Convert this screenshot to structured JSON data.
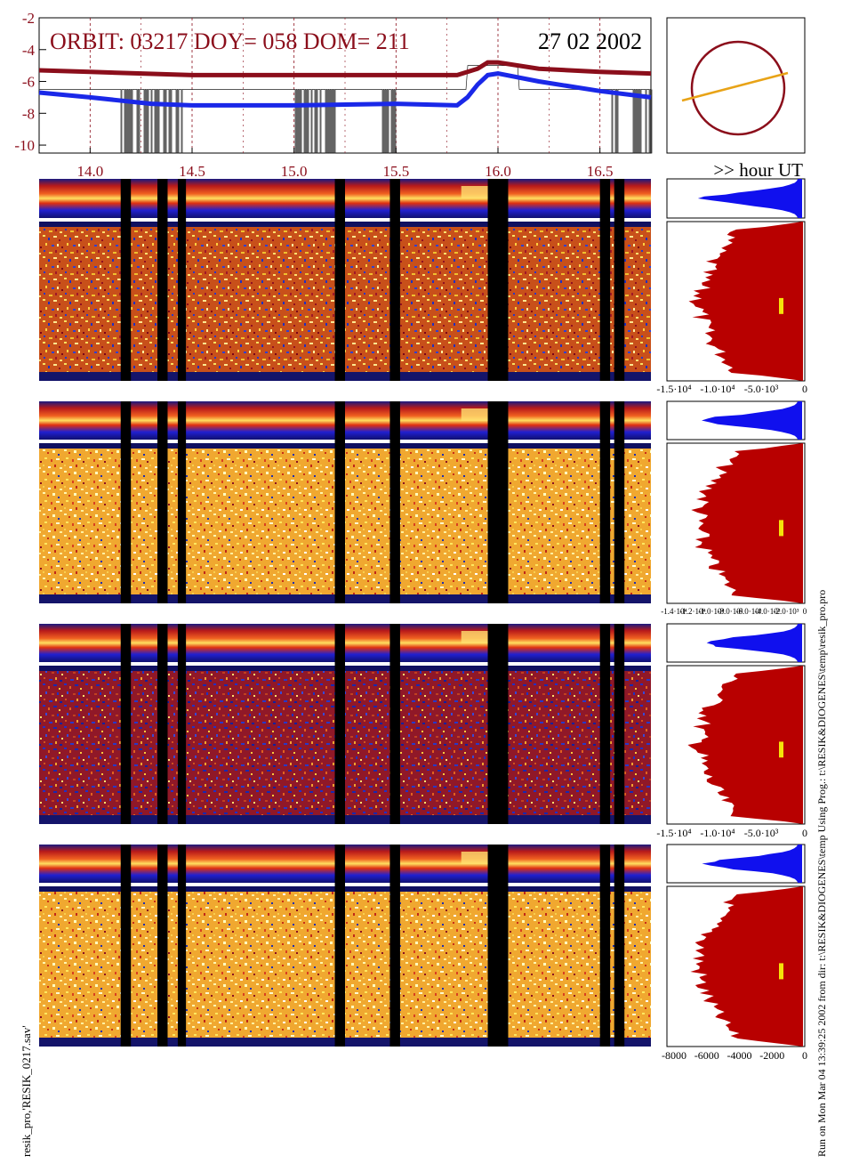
{
  "header": {
    "orbit_text": "ORBIT: 03217 DOY=  058 DOM=  211",
    "date_text": "27 02 2002",
    "hour_label": ">> hour UT"
  },
  "side_text": {
    "left": "resik_pro,'RESIK_0217.sav'",
    "right": "Run on Mon Mar 04 13:39:25 2002  from dir: t:\\RESIK&DIOGENES\\temp Using Prog.: t:\\RESIK&DIOGENES\\temp\\resik_pro.pro"
  },
  "colors": {
    "dark_red": "#8b0e1b",
    "blue": "#1a28e8",
    "hist_red": "#b80000",
    "hist_blue": "#1010ee",
    "orbit_line": "#e8a317",
    "yellow_mark": "#f4e20a"
  },
  "chart_data": {
    "type": "line",
    "x_unit": "hour UT",
    "xlim": [
      13.75,
      16.75
    ],
    "ylim": [
      -10.5,
      -2
    ],
    "x_ticks": [
      "14.0",
      "14.5",
      "15.0",
      "15.5",
      "16.0",
      "16.5"
    ],
    "y_ticks": [
      "-2",
      "-4",
      "-6",
      "-8",
      "-10"
    ],
    "series": [
      {
        "x": [
          13.75,
          14.0,
          14.5,
          15.0,
          15.5,
          15.8,
          15.9,
          15.95,
          16.0,
          16.2,
          16.5,
          16.75
        ],
        "y": [
          -5.3,
          -5.4,
          -5.6,
          -5.6,
          -5.6,
          -5.6,
          -5.2,
          -4.8,
          -4.8,
          -5.2,
          -5.4,
          -5.5
        ]
      },
      {
        "x": [
          13.75,
          14.0,
          14.3,
          14.5,
          15.0,
          15.5,
          15.8,
          15.85,
          15.9,
          15.95,
          16.0,
          16.2,
          16.5,
          16.75
        ],
        "y": [
          -6.7,
          -7.0,
          -7.4,
          -7.5,
          -7.5,
          -7.4,
          -7.5,
          -7.0,
          -6.2,
          -5.6,
          -5.5,
          -6.0,
          -6.6,
          -7.0
        ]
      }
    ],
    "histogram_ticks": [
      [
        "-1.5·10⁴",
        "-1.0·10⁴",
        "-5.0·10³",
        "0"
      ],
      [
        "-1.4·10⁴",
        "-1.2·10⁴",
        "-1.0·10⁴",
        "-8.0·10³",
        "-6.0·10³",
        "-4.0·10³",
        "-2.0·10³",
        "0"
      ],
      [
        "-1.5·10⁴",
        "-1.0·10⁴",
        "-5.0·10³",
        "0"
      ],
      [
        "-8000",
        "-6000",
        "-4000",
        "-2000",
        "0"
      ]
    ],
    "data_gaps_hour": [
      [
        14.15,
        14.2
      ],
      [
        14.33,
        14.38
      ],
      [
        14.43,
        14.47
      ],
      [
        15.2,
        15.25
      ],
      [
        15.47,
        15.52
      ],
      [
        15.95,
        16.05
      ],
      [
        16.5,
        16.55
      ],
      [
        16.57,
        16.62
      ]
    ]
  }
}
